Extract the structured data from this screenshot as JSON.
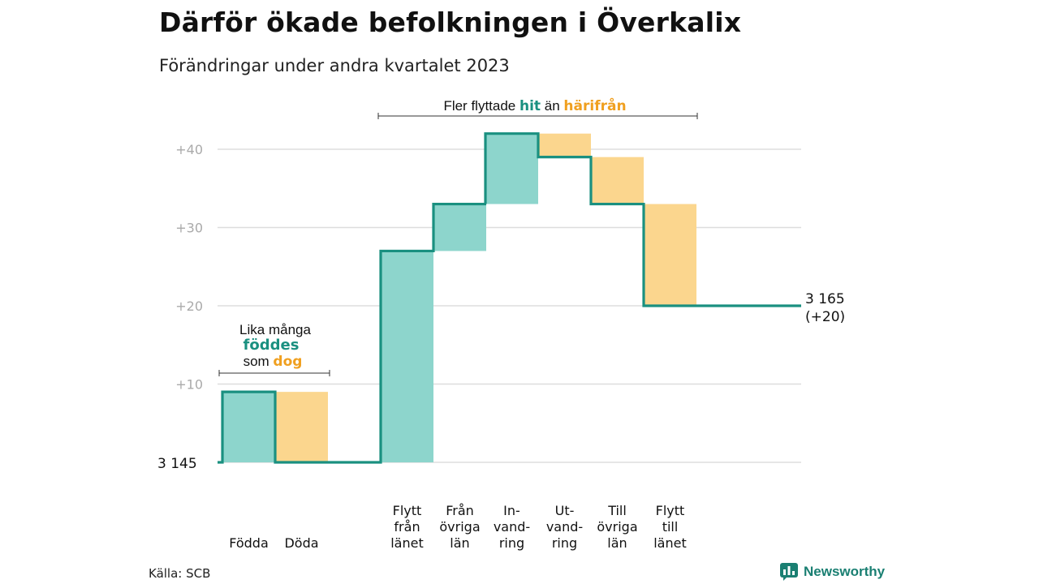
{
  "title": "Därför ökade befolkningen i Överkalix",
  "subtitle": "Förändringar under andra kvartalet 2023",
  "source": "Källa: SCB",
  "brand": "Newsworthy",
  "colors": {
    "increase_fill": "#8dd5cc",
    "decrease_fill": "#fbd68e",
    "line": "#1a9080",
    "accent_teal": "#1a9080",
    "accent_orange": "#f0a020",
    "grid": "#dddddd",
    "tick": "#aaaaaa"
  },
  "chart_data": {
    "type": "waterfall",
    "base_value": 3145,
    "base_label": "3  145",
    "end_label": "3 165",
    "end_change_label": "(+20)",
    "ylim": [
      0,
      42
    ],
    "yticks": [
      {
        "value": 10,
        "label": "+10"
      },
      {
        "value": 20,
        "label": "+20"
      },
      {
        "value": 30,
        "label": "+30"
      },
      {
        "value": 40,
        "label": "+40"
      }
    ],
    "steps": [
      {
        "label_lines": [
          "Födda"
        ],
        "value": 9
      },
      {
        "label_lines": [
          "Döda"
        ],
        "value": -9
      },
      {
        "label_lines": [
          "Flytt",
          "från",
          "länet"
        ],
        "value": 27
      },
      {
        "label_lines": [
          "Från",
          "övriga",
          "län"
        ],
        "value": 6
      },
      {
        "label_lines": [
          "In-",
          "vand-",
          "ring"
        ],
        "value": 9
      },
      {
        "label_lines": [
          "Ut-",
          "vand-",
          "ring"
        ],
        "value": -3
      },
      {
        "label_lines": [
          "Till",
          "övriga",
          "län"
        ],
        "value": -6
      },
      {
        "label_lines": [
          "Flytt",
          "till",
          "länet"
        ],
        "value": -13
      }
    ],
    "annotations": {
      "births_deaths": {
        "line1": "Lika många",
        "highlight1": "föddes",
        "line3_prefix": "som",
        "highlight2": "dog"
      },
      "migration": {
        "prefix": "Fler flyttade",
        "highlight1": "hit",
        "middle": "än",
        "highlight2": "härifrån"
      }
    }
  }
}
